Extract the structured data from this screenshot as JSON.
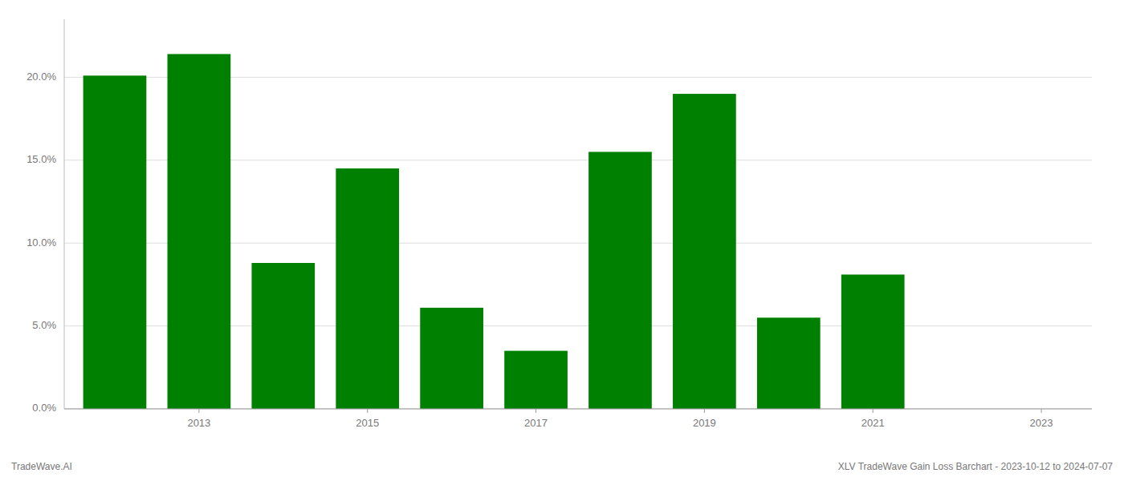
{
  "chart_data": {
    "type": "bar",
    "x": [
      2012,
      2013,
      2014,
      2015,
      2016,
      2017,
      2018,
      2019,
      2020,
      2021,
      2022
    ],
    "values": [
      0.201,
      0.214,
      0.088,
      0.145,
      0.061,
      0.035,
      0.155,
      0.19,
      0.055,
      0.081,
      0.0
    ],
    "color": "#008000",
    "xlim": [
      2011.4,
      2023.6
    ],
    "xticks": [
      2013,
      2015,
      2017,
      2019,
      2021,
      2023
    ],
    "ylim": [
      0,
      0.235
    ],
    "yticks": [
      {
        "value": 0.0,
        "label": "0.0%"
      },
      {
        "value": 0.05,
        "label": "5.0%"
      },
      {
        "value": 0.1,
        "label": "10.0%"
      },
      {
        "value": 0.15,
        "label": "15.0%"
      },
      {
        "value": 0.2,
        "label": "20.0%"
      }
    ],
    "grid": true,
    "annotations": [
      "TradeWave.AI",
      "XLV TradeWave Gain Loss Barchart - 2023-10-12 to 2024-07-07"
    ]
  }
}
